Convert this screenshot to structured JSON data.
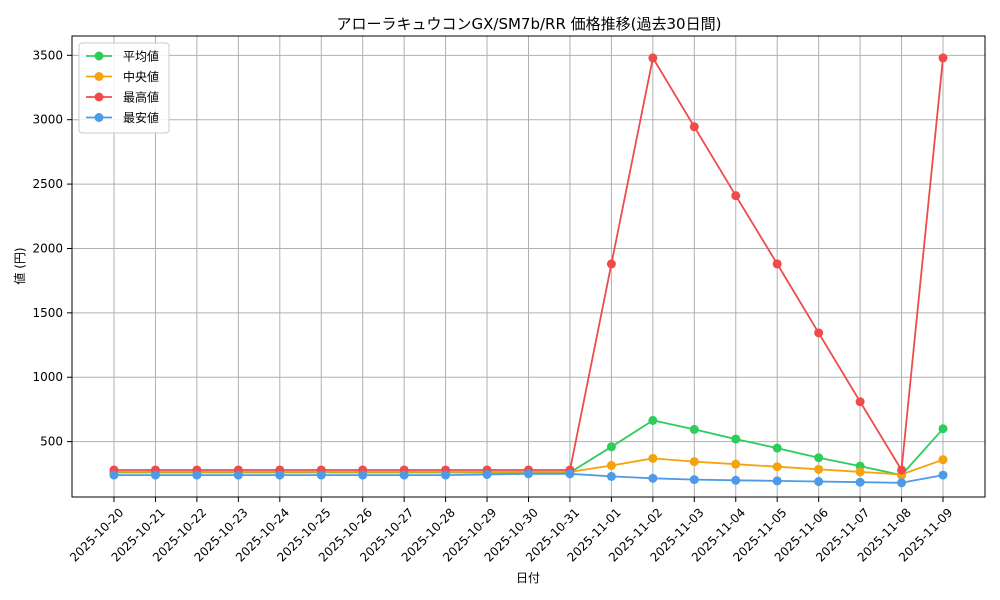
{
  "chart_data": {
    "type": "line",
    "title": "アローラキュウコンGX/SM7b/RR 価格推移(過去30日間)",
    "xlabel": "日付",
    "ylabel": "値 (円)",
    "categories": [
      "2025-10-20",
      "2025-10-21",
      "2025-10-22",
      "2025-10-23",
      "2025-10-24",
      "2025-10-25",
      "2025-10-26",
      "2025-10-27",
      "2025-10-28",
      "2025-10-29",
      "2025-10-30",
      "2025-10-31",
      "2025-11-01",
      "2025-11-02",
      "2025-11-03",
      "2025-11-04",
      "2025-11-05",
      "2025-11-06",
      "2025-11-07",
      "2025-11-08",
      "2025-11-09"
    ],
    "yticks": [
      500,
      1000,
      1500,
      2000,
      2500,
      3000,
      3500
    ],
    "ylim": [
      70,
      3650
    ],
    "grid": true,
    "legend_position": "top-left",
    "series": [
      {
        "name": "平均値",
        "color": "#2ecc5b",
        "values": [
          260,
          260,
          260,
          260,
          260,
          260,
          260,
          260,
          260,
          260,
          260,
          260,
          460,
          665,
          595,
          520,
          450,
          375,
          310,
          240,
          600
        ]
      },
      {
        "name": "中央値",
        "color": "#f5a20c",
        "values": [
          265,
          265,
          265,
          265,
          265,
          265,
          265,
          265,
          265,
          265,
          265,
          265,
          315,
          370,
          345,
          325,
          305,
          285,
          265,
          245,
          360
        ]
      },
      {
        "name": "最高値",
        "color": "#ef4b4b",
        "values": [
          280,
          280,
          280,
          280,
          280,
          280,
          280,
          280,
          280,
          280,
          280,
          280,
          1880,
          3480,
          2945,
          2410,
          1880,
          1345,
          810,
          280,
          3480
        ]
      },
      {
        "name": "最安値",
        "color": "#4d9be6",
        "values": [
          240,
          240,
          240,
          240,
          240,
          240,
          240,
          240,
          240,
          245,
          250,
          250,
          230,
          215,
          205,
          200,
          195,
          190,
          185,
          180,
          240
        ]
      }
    ]
  }
}
